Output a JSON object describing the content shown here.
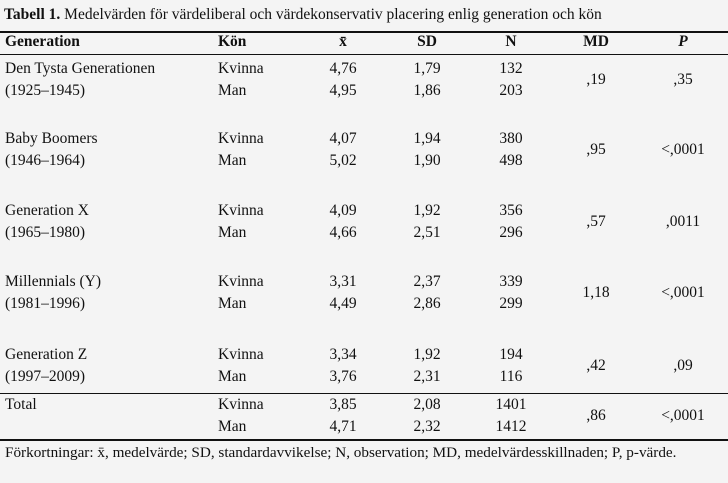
{
  "caption": {
    "label": "Tabell 1.",
    "text": " Medelvärden för värdeliberal och värdekonservativ placering enlig generation och kön"
  },
  "headers": {
    "generation": "Generation",
    "kon": "Kön",
    "mean": "x̄",
    "sd": "SD",
    "n": "N",
    "md": "MD",
    "p": "P"
  },
  "groups": [
    {
      "name": "Den Tysta Generationen",
      "years": "(1925–1945)",
      "rows": [
        {
          "kon": "Kvinna",
          "mean": "4,76",
          "sd": "1,79",
          "n": "132"
        },
        {
          "kon": "Man",
          "mean": "4,95",
          "sd": "1,86",
          "n": "203"
        }
      ],
      "md": ",19",
      "p": ",35"
    },
    {
      "name": "Baby Boomers",
      "years": "(1946–1964)",
      "rows": [
        {
          "kon": "Kvinna",
          "mean": "4,07",
          "sd": "1,94",
          "n": "380"
        },
        {
          "kon": "Man",
          "mean": "5,02",
          "sd": "1,90",
          "n": "498"
        }
      ],
      "md": ",95",
      "p": "<,0001"
    },
    {
      "name": "Generation X",
      "years": "(1965–1980)",
      "rows": [
        {
          "kon": "Kvinna",
          "mean": "4,09",
          "sd": "1,92",
          "n": "356"
        },
        {
          "kon": "Man",
          "mean": "4,66",
          "sd": "2,51",
          "n": "296"
        }
      ],
      "md": ",57",
      "p": ",0011"
    },
    {
      "name": "Millennials (Y)",
      "years": "(1981–1996)",
      "rows": [
        {
          "kon": "Kvinna",
          "mean": "3,31",
          "sd": "2,37",
          "n": "339"
        },
        {
          "kon": "Man",
          "mean": "4,49",
          "sd": "2,86",
          "n": "299"
        }
      ],
      "md": "1,18",
      "p": "<,0001"
    },
    {
      "name": "Generation Z",
      "years": "(1997–2009)",
      "rows": [
        {
          "kon": "Kvinna",
          "mean": "3,34",
          "sd": "1,92",
          "n": "194"
        },
        {
          "kon": "Man",
          "mean": "3,76",
          "sd": "2,31",
          "n": "116"
        }
      ],
      "md": ",42",
      "p": ",09"
    }
  ],
  "total": {
    "name": "Total",
    "rows": [
      {
        "kon": "Kvinna",
        "mean": "3,85",
        "sd": "2,08",
        "n": "1401"
      },
      {
        "kon": "Man",
        "mean": "4,71",
        "sd": "2,32",
        "n": "1412"
      }
    ],
    "md": ",86",
    "p": "<,0001"
  },
  "footnote": "Förkortningar: x̄, medelvärde; SD, standardavvikelse; N, observation; MD, medelvärdesskillnaden; P, p-värde."
}
